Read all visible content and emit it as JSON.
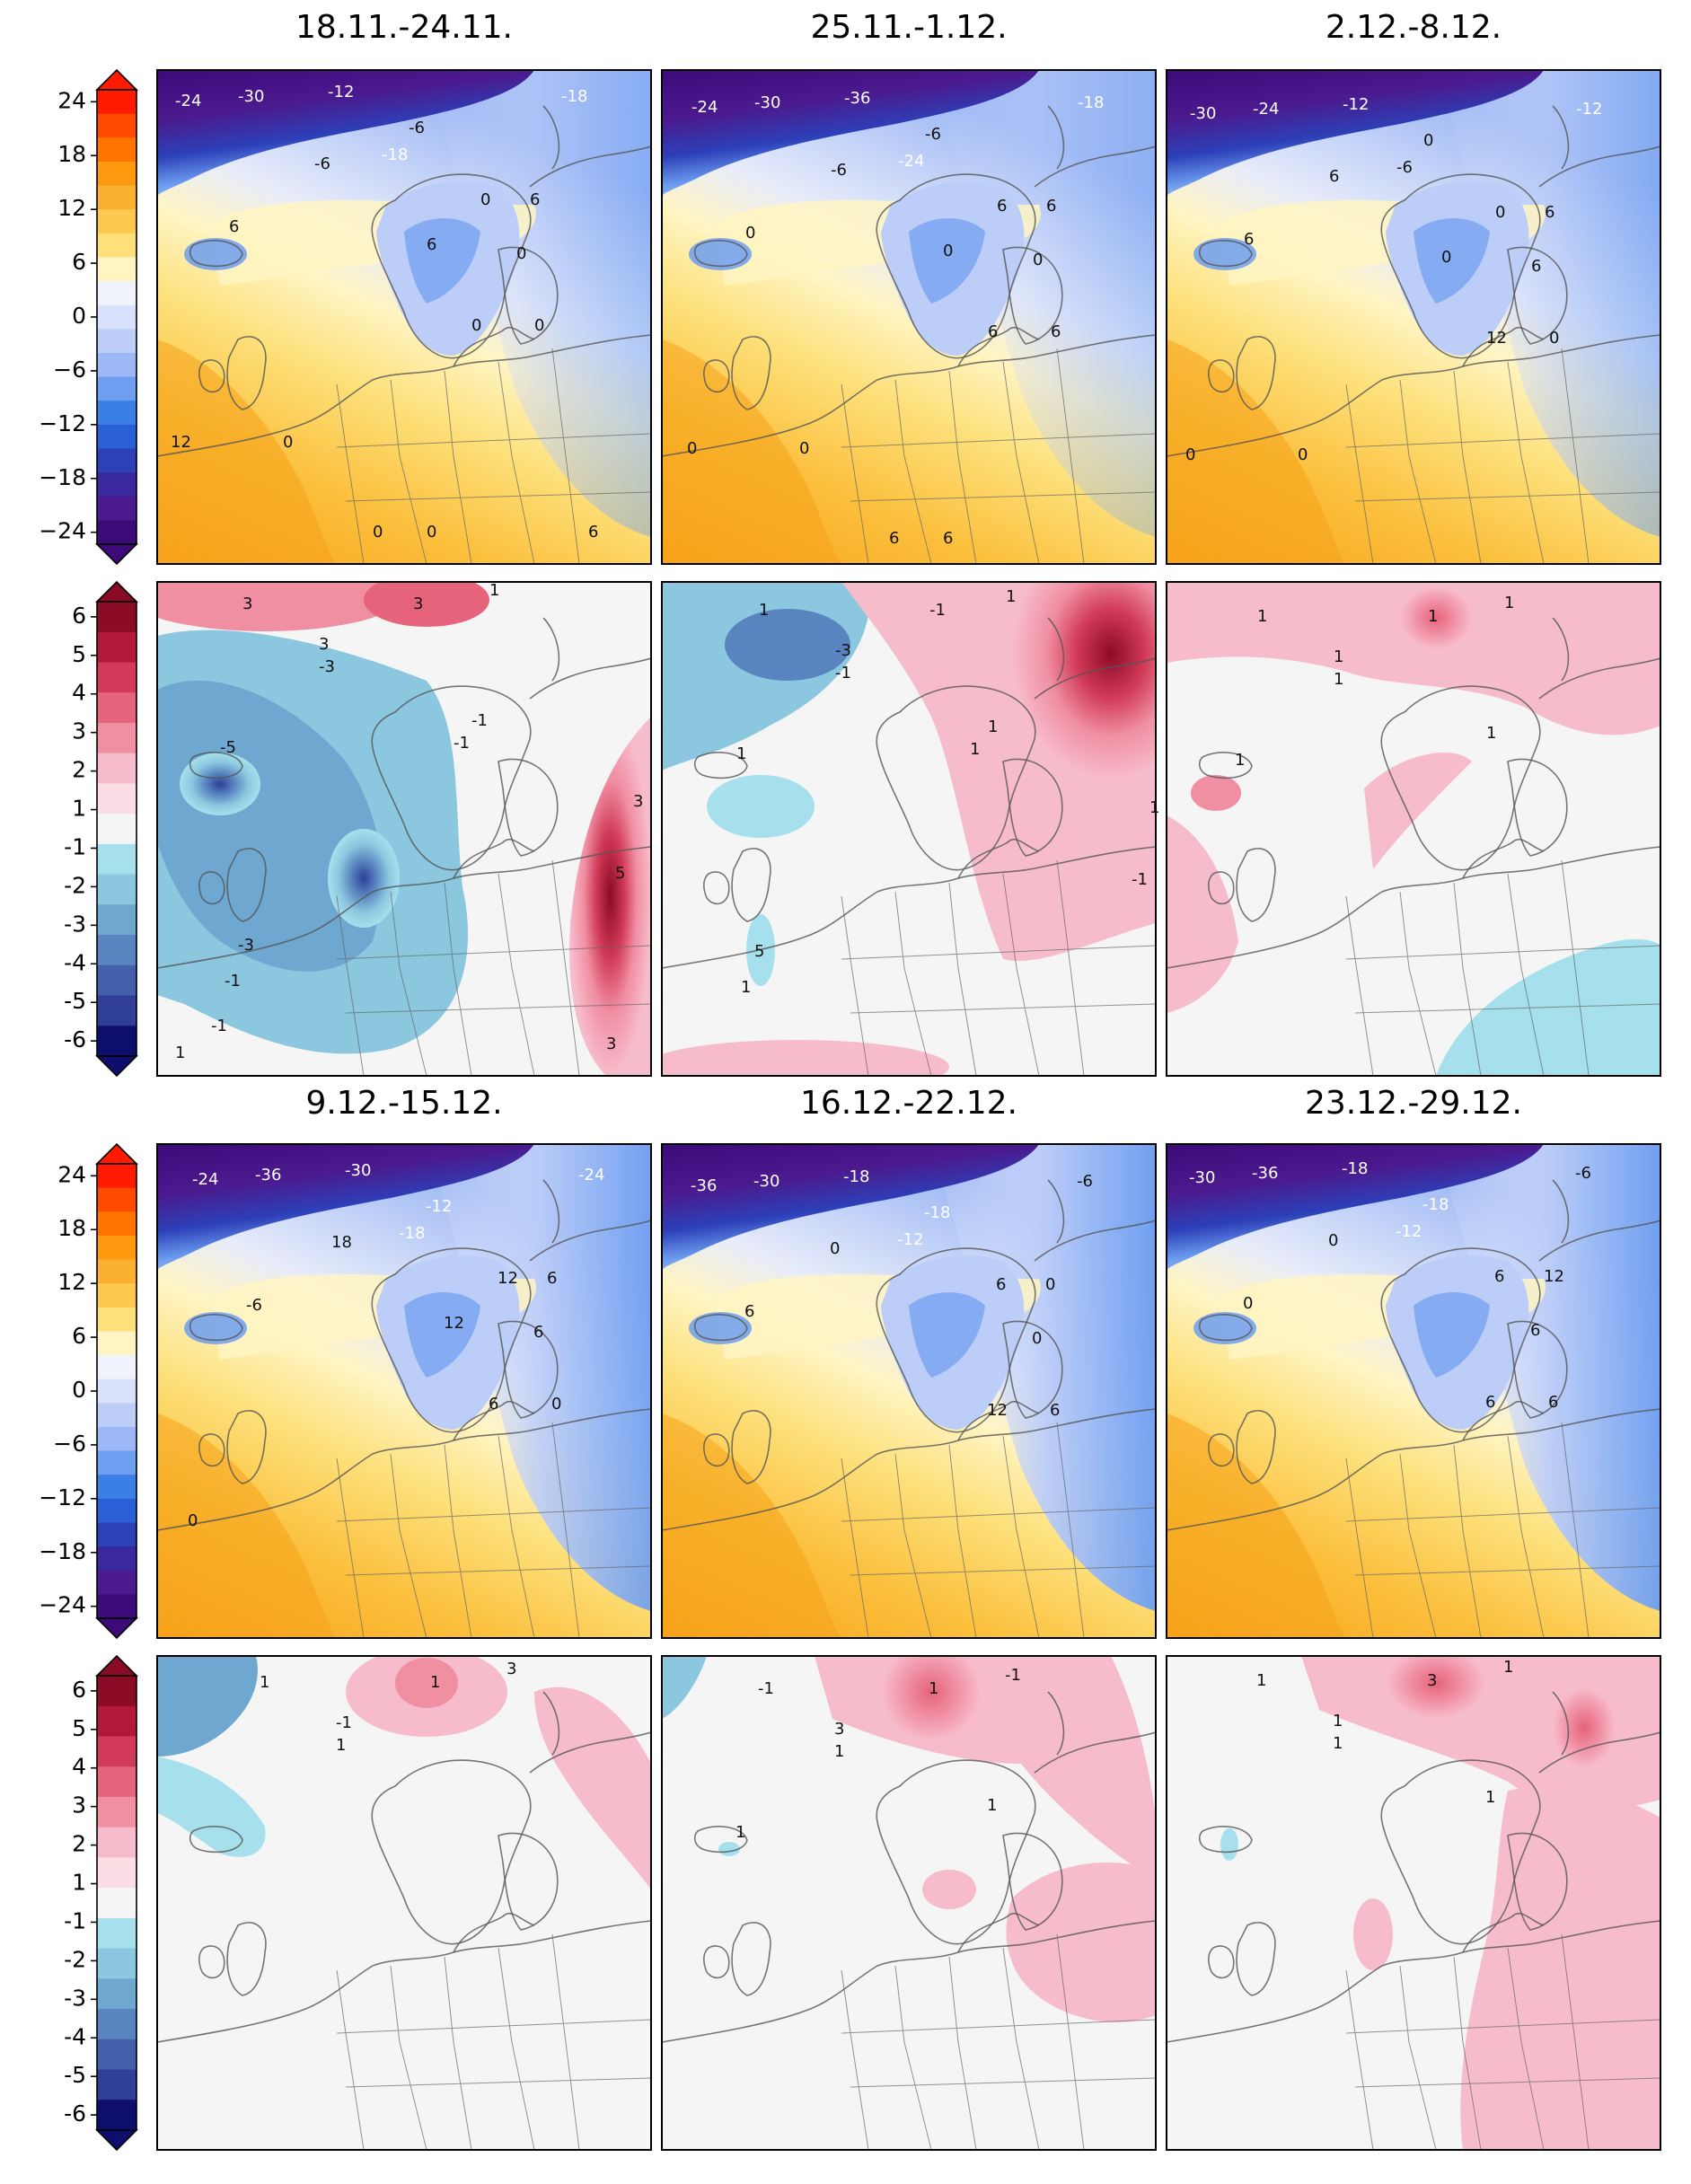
{
  "figure": {
    "week_titles": [
      "18.11.-24.11.",
      "25.11.-1.12.",
      "2.12.-8.12.",
      "9.12.-15.12.",
      "16.12.-22.12.",
      "23.12.-29.12."
    ],
    "colorbars": {
      "temperature": {
        "ticks": [
          "24",
          "18",
          "12",
          "6",
          "0",
          "−6",
          "−12",
          "−18",
          "−24"
        ],
        "colors": [
          "#ff1a00",
          "#ff4a00",
          "#ff7400",
          "#ff9a10",
          "#fbb030",
          "#fcc850",
          "#fde07a",
          "#fff4c2",
          "#f0f2fc",
          "#d9e2fa",
          "#bccdf8",
          "#9db8f5",
          "#6d9ef0",
          "#3a7fe6",
          "#2a5fd6",
          "#2c40b8",
          "#3a289e",
          "#4b1a8e",
          "#3d0a7a"
        ]
      },
      "anomaly": {
        "ticks": [
          "6",
          "5",
          "4",
          "3",
          "2",
          "1",
          "-1",
          "-2",
          "-3",
          "-4",
          "-5",
          "-6"
        ],
        "colors": [
          "#8b0a25",
          "#b3183a",
          "#d13a58",
          "#e5637b",
          "#f08ea2",
          "#f7bccb",
          "#fbdde5",
          "#f5f5f5",
          "#a6e0ec",
          "#8bc7df",
          "#6ea7d0",
          "#5884bf",
          "#4460ac",
          "#2f3f98",
          "#0e0e6e"
        ]
      }
    },
    "temperature_labels": {
      "p0": [
        "-24",
        "-30",
        "-12",
        "-18",
        "-18",
        "-6",
        "-6",
        "0",
        "6",
        "0",
        "0",
        "0",
        "6",
        "6",
        "12",
        "0",
        "0",
        "0",
        "6"
      ],
      "p1": [
        "-24",
        "-30",
        "-36",
        "-24",
        "-18",
        "-6",
        "-6",
        "6",
        "0",
        "0",
        "6",
        "6",
        "6",
        "0",
        "0",
        "0",
        "6",
        "6"
      ],
      "p2": [
        "-30",
        "-24",
        "-12",
        "-6",
        "-12",
        "0",
        "6",
        "0",
        "6",
        "6",
        "0",
        "12",
        "6",
        "0",
        "0",
        "0"
      ],
      "p3": [
        "-24",
        "-36",
        "-30",
        "-18",
        "-24",
        "-12",
        "18",
        "12",
        "-6",
        "6",
        "0",
        "6",
        "6",
        "12",
        "0"
      ],
      "p4": [
        "-36",
        "-30",
        "-18",
        "-12",
        "-6",
        "-18",
        "0",
        "6",
        "6",
        "0",
        "6",
        "12",
        "0"
      ],
      "p5": [
        "-30",
        "-36",
        "-18",
        "-12",
        "-6",
        "-18",
        "0",
        "6",
        "0",
        "6",
        "6",
        "6",
        "12"
      ]
    },
    "anomaly_labels": {
      "p0": [
        "3",
        "3",
        "3",
        "1",
        "-3",
        "-1",
        "-5",
        "-1",
        "-1",
        "3",
        "5",
        "-3",
        "-1",
        "1",
        "3"
      ],
      "p1": [
        "1",
        "-1",
        "-3",
        "1",
        "-1",
        "1",
        "1",
        "1",
        "1",
        "1",
        "-1",
        "5"
      ],
      "p2": [
        "1",
        "1",
        "1",
        "1",
        "1",
        "1",
        "1"
      ],
      "p3": [
        "1",
        "1",
        "-1",
        "3",
        "1"
      ],
      "p4": [
        "-1",
        "1",
        "3",
        "-1",
        "1",
        "1",
        "1"
      ],
      "p5": [
        "1",
        "3",
        "1",
        "1",
        "1",
        "1"
      ]
    }
  }
}
